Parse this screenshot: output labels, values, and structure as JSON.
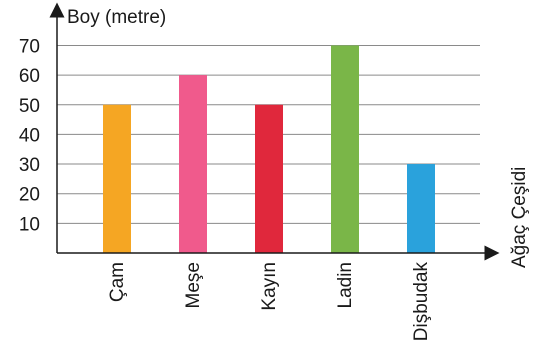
{
  "chart_data": {
    "type": "bar",
    "ylabel": "Boy (metre)",
    "xlabel": "Ağaç Çeşidi",
    "categories": [
      "Çam",
      "Meşe",
      "Kayın",
      "Ladin",
      "Dişbudak"
    ],
    "values": [
      50,
      60,
      50,
      70,
      30
    ],
    "colors": [
      "#f5a623",
      "#f05a8c",
      "#e0283c",
      "#7ab648",
      "#2aa2dc"
    ],
    "y_ticks": [
      10,
      20,
      30,
      40,
      50,
      60,
      70
    ],
    "ylim": [
      0,
      70
    ],
    "grid": true,
    "legend": "none"
  }
}
